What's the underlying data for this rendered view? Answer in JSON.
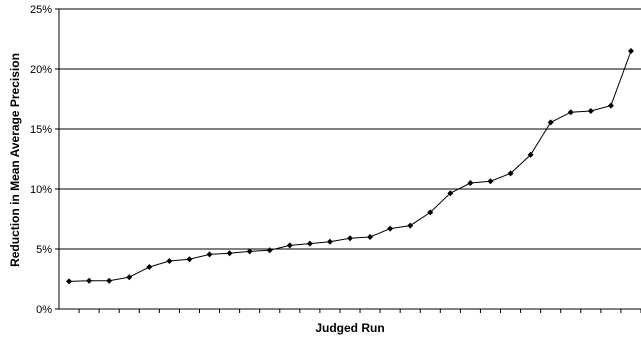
{
  "chart_data": {
    "type": "line",
    "title": "",
    "xlabel": "Judged Run",
    "ylabel": "Reduction in Mean Average Precision",
    "ylim": [
      0,
      25
    ],
    "yticks": [
      0,
      5,
      10,
      15,
      20,
      25
    ],
    "ytick_labels": [
      "0%",
      "5%",
      "10%",
      "15%",
      "20%",
      "25%"
    ],
    "grid": true,
    "legend": "none",
    "x_count": 29,
    "series": [
      {
        "values": [
          2.3,
          2.35,
          2.35,
          2.65,
          3.5,
          4.0,
          4.15,
          4.55,
          4.65,
          4.8,
          4.9,
          5.3,
          5.45,
          5.6,
          5.9,
          6.0,
          6.7,
          6.95,
          8.05,
          9.65,
          10.5,
          10.65,
          11.3,
          12.85,
          15.55,
          16.4,
          16.5,
          16.95,
          21.5
        ],
        "color": "#000000"
      }
    ]
  }
}
